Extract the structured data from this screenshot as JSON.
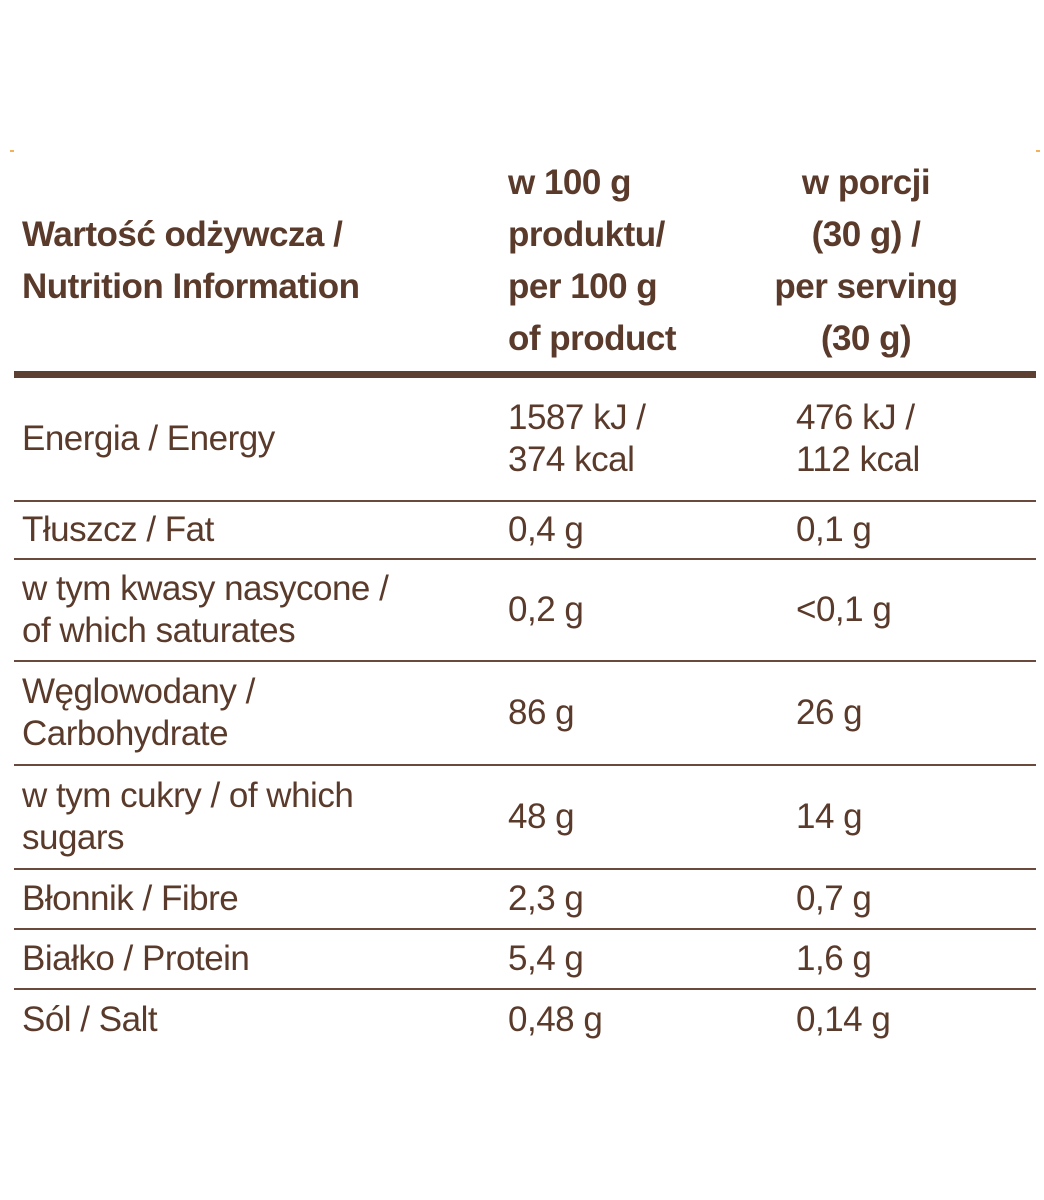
{
  "table": {
    "header": {
      "nutrient": "Wartość odżywcza /\nNutrition Information",
      "per100": "w 100 g\nproduktu/\nper 100 g\nof product",
      "perServing": "w porcji\n(30 g) /\nper serving\n(30 g)"
    },
    "rows": [
      {
        "name": "Energia / Energy",
        "per100": "1587 kJ /\n374 kcal",
        "perServing": "476 kJ /\n112 kcal"
      },
      {
        "name": "Tłuszcz / Fat",
        "per100": "0,4 g",
        "perServing": "0,1 g"
      },
      {
        "name": "w tym kwasy nasycone /\nof which saturates",
        "per100": "0,2 g",
        "perServing": "<0,1 g"
      },
      {
        "name": "Węglowodany /\nCarbohydrate",
        "per100": "86 g",
        "perServing": "26 g"
      },
      {
        "name": "w tym cukry / of which\nsugars",
        "per100": "48 g",
        "perServing": "14 g"
      },
      {
        "name": "Błonnik / Fibre",
        "per100": "2,3 g",
        "perServing": "0,7 g"
      },
      {
        "name": "Białko / Protein",
        "per100": "5,4 g",
        "perServing": "1,6 g"
      },
      {
        "name": "Sól / Salt",
        "per100": "0,48 g",
        "perServing": "0,14 g"
      }
    ]
  },
  "colors": {
    "text": "#5a3a2a",
    "rule": "#5e4032",
    "accent": "#f3b25a"
  }
}
